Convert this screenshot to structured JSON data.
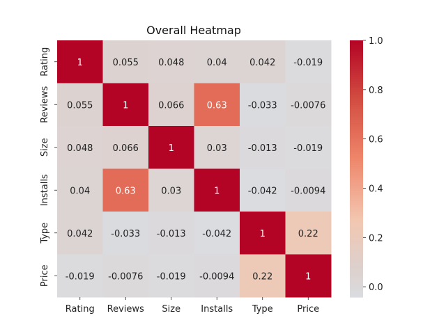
{
  "chart_data": {
    "type": "heatmap",
    "title": "Overall Heatmap",
    "rows": [
      "Rating",
      "Reviews",
      "Size",
      "Installs",
      "Type",
      "Price"
    ],
    "cols": [
      "Rating",
      "Reviews",
      "Size",
      "Installs",
      "Type",
      "Price"
    ],
    "values": [
      [
        1,
        0.055,
        0.048,
        0.04,
        0.042,
        -0.019
      ],
      [
        0.055,
        1,
        0.066,
        0.63,
        -0.033,
        -0.0076
      ],
      [
        0.048,
        0.066,
        1,
        0.03,
        -0.013,
        -0.019
      ],
      [
        0.04,
        0.63,
        0.03,
        1,
        -0.042,
        -0.0094
      ],
      [
        0.042,
        -0.033,
        -0.013,
        -0.042,
        1,
        0.22
      ],
      [
        -0.019,
        -0.0076,
        -0.019,
        -0.0094,
        0.22,
        1
      ]
    ],
    "value_labels": [
      [
        "1",
        "0.055",
        "0.048",
        "0.04",
        "0.042",
        "-0.019"
      ],
      [
        "0.055",
        "1",
        "0.066",
        "0.63",
        "-0.033",
        "-0.0076"
      ],
      [
        "0.048",
        "0.066",
        "1",
        "0.03",
        "-0.013",
        "-0.019"
      ],
      [
        "0.04",
        "0.63",
        "0.03",
        "1",
        "-0.042",
        "-0.0094"
      ],
      [
        "0.042",
        "-0.033",
        "-0.013",
        "-0.042",
        "1",
        "0.22"
      ],
      [
        "-0.019",
        "-0.0076",
        "-0.019",
        "-0.0094",
        "0.22",
        "1"
      ]
    ],
    "colorbar": {
      "min": -0.042,
      "max": 1.0,
      "ticks": [
        0.0,
        0.2,
        0.4,
        0.6,
        0.8,
        1.0
      ],
      "tick_labels": [
        "0.0",
        "0.2",
        "0.4",
        "0.6",
        "0.8",
        "1.0"
      ]
    },
    "colormap": "coolwarm-centered",
    "colors": {
      "low": "#dadce0",
      "mid": "#ddd0cc",
      "high": "#b40426"
    }
  }
}
